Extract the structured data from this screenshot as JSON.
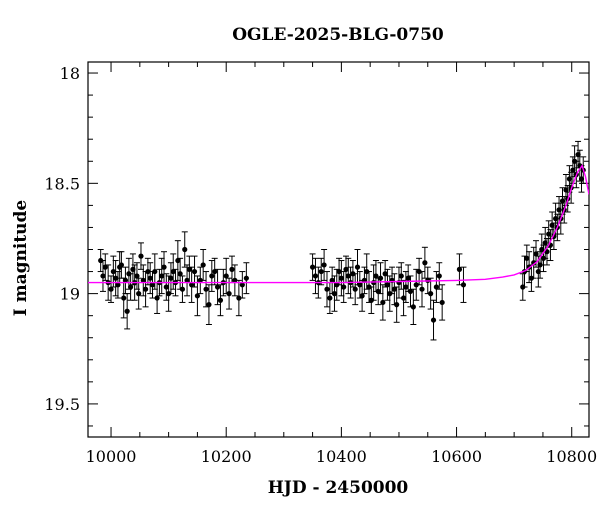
{
  "chart_data": {
    "type": "scatter",
    "title": "OGLE-2025-BLG-0750",
    "xlabel": "HJD - 2450000",
    "ylabel": "I magnitude",
    "xlim": [
      9960,
      10830
    ],
    "ylim": [
      19.65,
      17.95
    ],
    "y_inverted": true,
    "x_ticks": [
      10000,
      10200,
      10400,
      10600,
      10800
    ],
    "x_tick_labels": [
      "10000",
      "10200",
      "10400",
      "10600",
      "10800"
    ],
    "y_ticks": [
      18,
      18.5,
      19,
      19.5
    ],
    "y_tick_labels": [
      "18",
      "18.5",
      "19",
      "19.5"
    ],
    "grid": false,
    "legend": "none",
    "series": [
      {
        "kind": "points_with_errorbars",
        "color": "#000000",
        "points": [
          [
            9982,
            18.85,
            0.05
          ],
          [
            9986,
            18.92,
            0.07
          ],
          [
            9990,
            18.88,
            0.06
          ],
          [
            9995,
            18.95,
            0.08
          ],
          [
            10000,
            18.98,
            0.06
          ],
          [
            10004,
            18.9,
            0.07
          ],
          [
            10008,
            18.93,
            0.08
          ],
          [
            10012,
            18.96,
            0.06
          ],
          [
            10015,
            18.88,
            0.07
          ],
          [
            10018,
            18.87,
            0.06
          ],
          [
            10022,
            19.02,
            0.09
          ],
          [
            10025,
            18.94,
            0.06
          ],
          [
            10028,
            19.08,
            0.08
          ],
          [
            10031,
            18.91,
            0.07
          ],
          [
            10034,
            18.97,
            0.06
          ],
          [
            10038,
            18.89,
            0.07
          ],
          [
            10041,
            18.95,
            0.08
          ],
          [
            10045,
            18.92,
            0.06
          ],
          [
            10048,
            19.0,
            0.07
          ],
          [
            10052,
            18.83,
            0.06
          ],
          [
            10056,
            18.94,
            0.07
          ],
          [
            10060,
            18.98,
            0.08
          ],
          [
            10064,
            18.9,
            0.06
          ],
          [
            10068,
            18.93,
            0.07
          ],
          [
            10072,
            18.96,
            0.06
          ],
          [
            10076,
            18.9,
            0.08
          ],
          [
            10080,
            19.02,
            0.07
          ],
          [
            10084,
            18.95,
            0.06
          ],
          [
            10088,
            18.92,
            0.08
          ],
          [
            10092,
            18.88,
            0.07
          ],
          [
            10096,
            18.97,
            0.06
          ],
          [
            10100,
            19.0,
            0.08
          ],
          [
            10104,
            18.93,
            0.07
          ],
          [
            10108,
            18.9,
            0.08
          ],
          [
            10112,
            18.95,
            0.06
          ],
          [
            10116,
            18.85,
            0.09
          ],
          [
            10120,
            18.91,
            0.07
          ],
          [
            10124,
            18.98,
            0.06
          ],
          [
            10128,
            18.8,
            0.08
          ],
          [
            10132,
            18.94,
            0.07
          ],
          [
            10136,
            18.89,
            0.06
          ],
          [
            10140,
            18.96,
            0.08
          ],
          [
            10145,
            18.9,
            0.07
          ],
          [
            10150,
            19.01,
            0.09
          ],
          [
            10155,
            18.94,
            0.06
          ],
          [
            10160,
            18.87,
            0.07
          ],
          [
            10165,
            18.98,
            0.08
          ],
          [
            10170,
            19.05,
            0.09
          ],
          [
            10175,
            18.92,
            0.07
          ],
          [
            10180,
            18.9,
            0.06
          ],
          [
            10185,
            18.97,
            0.08
          ],
          [
            10190,
            19.03,
            0.07
          ],
          [
            10195,
            18.95,
            0.06
          ],
          [
            10200,
            18.92,
            0.08
          ],
          [
            10205,
            19.0,
            0.07
          ],
          [
            10210,
            18.89,
            0.06
          ],
          [
            10215,
            18.94,
            0.07
          ],
          [
            10222,
            19.02,
            0.08
          ],
          [
            10228,
            18.96,
            0.06
          ],
          [
            10235,
            18.93,
            0.07
          ],
          [
            10350,
            18.88,
            0.06
          ],
          [
            10355,
            18.92,
            0.08
          ],
          [
            10360,
            18.95,
            0.07
          ],
          [
            10365,
            18.9,
            0.06
          ],
          [
            10370,
            18.87,
            0.07
          ],
          [
            10375,
            18.98,
            0.08
          ],
          [
            10380,
            19.02,
            0.07
          ],
          [
            10384,
            18.94,
            0.06
          ],
          [
            10388,
            19.0,
            0.08
          ],
          [
            10392,
            18.96,
            0.07
          ],
          [
            10396,
            18.9,
            0.06
          ],
          [
            10400,
            18.93,
            0.08
          ],
          [
            10404,
            18.97,
            0.07
          ],
          [
            10408,
            18.89,
            0.06
          ],
          [
            10412,
            18.92,
            0.08
          ],
          [
            10416,
            18.95,
            0.07
          ],
          [
            10420,
            18.91,
            0.06
          ],
          [
            10424,
            18.98,
            0.07
          ],
          [
            10428,
            18.88,
            0.08
          ],
          [
            10432,
            18.96,
            0.06
          ],
          [
            10436,
            19.01,
            0.07
          ],
          [
            10440,
            18.94,
            0.06
          ],
          [
            10444,
            18.9,
            0.08
          ],
          [
            10448,
            18.97,
            0.07
          ],
          [
            10452,
            19.03,
            0.06
          ],
          [
            10456,
            18.95,
            0.08
          ],
          [
            10460,
            18.92,
            0.07
          ],
          [
            10464,
            18.99,
            0.06
          ],
          [
            10468,
            18.93,
            0.07
          ],
          [
            10472,
            19.04,
            0.08
          ],
          [
            10476,
            18.91,
            0.06
          ],
          [
            10480,
            18.96,
            0.07
          ],
          [
            10484,
            19.0,
            0.08
          ],
          [
            10488,
            18.94,
            0.06
          ],
          [
            10492,
            18.98,
            0.07
          ],
          [
            10496,
            19.05,
            0.08
          ],
          [
            10500,
            18.95,
            0.07
          ],
          [
            10504,
            18.92,
            0.06
          ],
          [
            10508,
            19.02,
            0.08
          ],
          [
            10512,
            18.97,
            0.07
          ],
          [
            10516,
            18.93,
            0.06
          ],
          [
            10520,
            18.99,
            0.07
          ],
          [
            10525,
            19.06,
            0.08
          ],
          [
            10530,
            18.96,
            0.07
          ],
          [
            10535,
            18.9,
            0.06
          ],
          [
            10540,
            18.98,
            0.08
          ],
          [
            10545,
            18.86,
            0.07
          ],
          [
            10550,
            18.94,
            0.06
          ],
          [
            10555,
            19.0,
            0.07
          ],
          [
            10560,
            19.12,
            0.09
          ],
          [
            10565,
            18.97,
            0.07
          ],
          [
            10570,
            18.92,
            0.06
          ],
          [
            10575,
            19.04,
            0.08
          ],
          [
            10605,
            18.89,
            0.07
          ],
          [
            10612,
            18.96,
            0.08
          ],
          [
            10715,
            18.97,
            0.06
          ],
          [
            10718,
            18.9,
            0.07
          ],
          [
            10722,
            18.84,
            0.06
          ],
          [
            10726,
            18.88,
            0.07
          ],
          [
            10730,
            18.93,
            0.06
          ],
          [
            10734,
            18.86,
            0.07
          ],
          [
            10738,
            18.82,
            0.06
          ],
          [
            10742,
            18.9,
            0.07
          ],
          [
            10745,
            18.87,
            0.06
          ],
          [
            10748,
            18.8,
            0.07
          ],
          [
            10751,
            18.84,
            0.06
          ],
          [
            10754,
            18.77,
            0.07
          ],
          [
            10757,
            18.81,
            0.06
          ],
          [
            10760,
            18.73,
            0.06
          ],
          [
            10763,
            18.78,
            0.07
          ],
          [
            10766,
            18.69,
            0.06
          ],
          [
            10769,
            18.74,
            0.06
          ],
          [
            10772,
            18.66,
            0.07
          ],
          [
            10775,
            18.7,
            0.06
          ],
          [
            10778,
            18.62,
            0.06
          ],
          [
            10781,
            18.66,
            0.07
          ],
          [
            10784,
            18.58,
            0.06
          ],
          [
            10787,
            18.62,
            0.06
          ],
          [
            10790,
            18.53,
            0.07
          ],
          [
            10793,
            18.57,
            0.06
          ],
          [
            10796,
            18.48,
            0.06
          ],
          [
            10799,
            18.52,
            0.07
          ],
          [
            10802,
            18.44,
            0.06
          ],
          [
            10805,
            18.4,
            0.07
          ],
          [
            10808,
            18.46,
            0.06
          ],
          [
            10811,
            18.37,
            0.06
          ],
          [
            10814,
            18.42,
            0.07
          ],
          [
            10817,
            18.48,
            0.06
          ],
          [
            10820,
            18.44,
            0.06
          ]
        ]
      },
      {
        "kind": "model_curve",
        "color": "#ff00ff",
        "x": [
          9960,
          10100,
          10200,
          10300,
          10400,
          10500,
          10600,
          10650,
          10680,
          10700,
          10720,
          10740,
          10760,
          10775,
          10790,
          10800,
          10810,
          10818,
          10824,
          10830
        ],
        "y": [
          18.95,
          18.95,
          18.95,
          18.95,
          18.95,
          18.945,
          18.94,
          18.935,
          18.925,
          18.915,
          18.895,
          18.855,
          18.78,
          18.7,
          18.6,
          18.52,
          18.45,
          18.42,
          18.47,
          18.55
        ]
      }
    ]
  }
}
